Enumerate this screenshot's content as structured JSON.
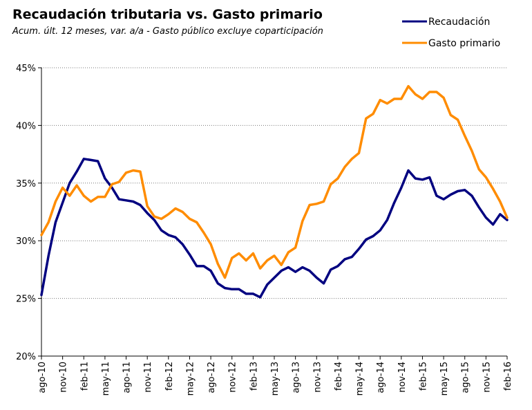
{
  "chart_data": {
    "type": "line",
    "title": "Recaudación tributaria vs. Gasto primario",
    "subtitle": "Acum. últ. 12 meses, var. a/a -  Gasto público  excluye coparticipación",
    "ylim": [
      20,
      45
    ],
    "y_ticks": [
      "20%",
      "25%",
      "30%",
      "35%",
      "40%",
      "45%"
    ],
    "y_tick_values": [
      20,
      25,
      30,
      35,
      40,
      45
    ],
    "x_tick_labels": [
      "ago-10",
      "nov-10",
      "feb-11",
      "may-11",
      "ago-11",
      "nov-11",
      "feb-12",
      "may-12",
      "ago-12",
      "nov-12",
      "feb-13",
      "may-13",
      "ago-13",
      "nov-13",
      "feb-14",
      "may-14",
      "ago-14",
      "nov-14",
      "feb-15",
      "may-15",
      "ago-15",
      "nov-15",
      "feb-16"
    ],
    "grid": "horizontal-dotted",
    "legend_position": "top-right",
    "series": [
      {
        "name": "Recaudación",
        "color": "#000080",
        "values": [
          25.3,
          28.7,
          31.6,
          33.3,
          35.0,
          36.0,
          37.1,
          37.0,
          36.9,
          35.4,
          34.6,
          33.6,
          33.5,
          33.4,
          33.1,
          32.4,
          31.8,
          30.9,
          30.5,
          30.3,
          29.7,
          28.8,
          27.8,
          27.8,
          27.4,
          26.3,
          25.9,
          25.8,
          25.8,
          25.4,
          25.4,
          25.1,
          26.2,
          26.8,
          27.4,
          27.7,
          27.3,
          27.7,
          27.4,
          26.8,
          26.3,
          27.5,
          27.8,
          28.4,
          28.6,
          29.3,
          30.1,
          30.4,
          30.9,
          31.8,
          33.3,
          34.6,
          36.1,
          35.4,
          35.3,
          35.5,
          33.9,
          33.6,
          34.0,
          34.3,
          34.4,
          33.9,
          32.9,
          32.0,
          31.4,
          32.3,
          31.8
        ]
      },
      {
        "name": "Gasto primario",
        "color": "#FF8C00",
        "values": [
          30.5,
          31.6,
          33.4,
          34.6,
          33.9,
          34.8,
          33.9,
          33.4,
          33.8,
          33.8,
          34.9,
          35.1,
          35.9,
          36.1,
          36.0,
          33.0,
          32.1,
          31.9,
          32.3,
          32.8,
          32.5,
          31.9,
          31.6,
          30.7,
          29.7,
          28.0,
          26.8,
          28.5,
          28.9,
          28.3,
          28.9,
          27.6,
          28.3,
          28.7,
          27.9,
          29.0,
          29.4,
          31.7,
          33.1,
          33.2,
          33.4,
          34.9,
          35.4,
          36.4,
          37.1,
          37.6,
          40.6,
          41.0,
          42.2,
          41.9,
          42.3,
          42.3,
          43.4,
          42.7,
          42.3,
          42.9,
          42.9,
          42.4,
          40.9,
          40.5,
          39.1,
          37.8,
          36.2,
          35.5,
          34.5,
          33.4,
          32.0
        ]
      }
    ]
  }
}
